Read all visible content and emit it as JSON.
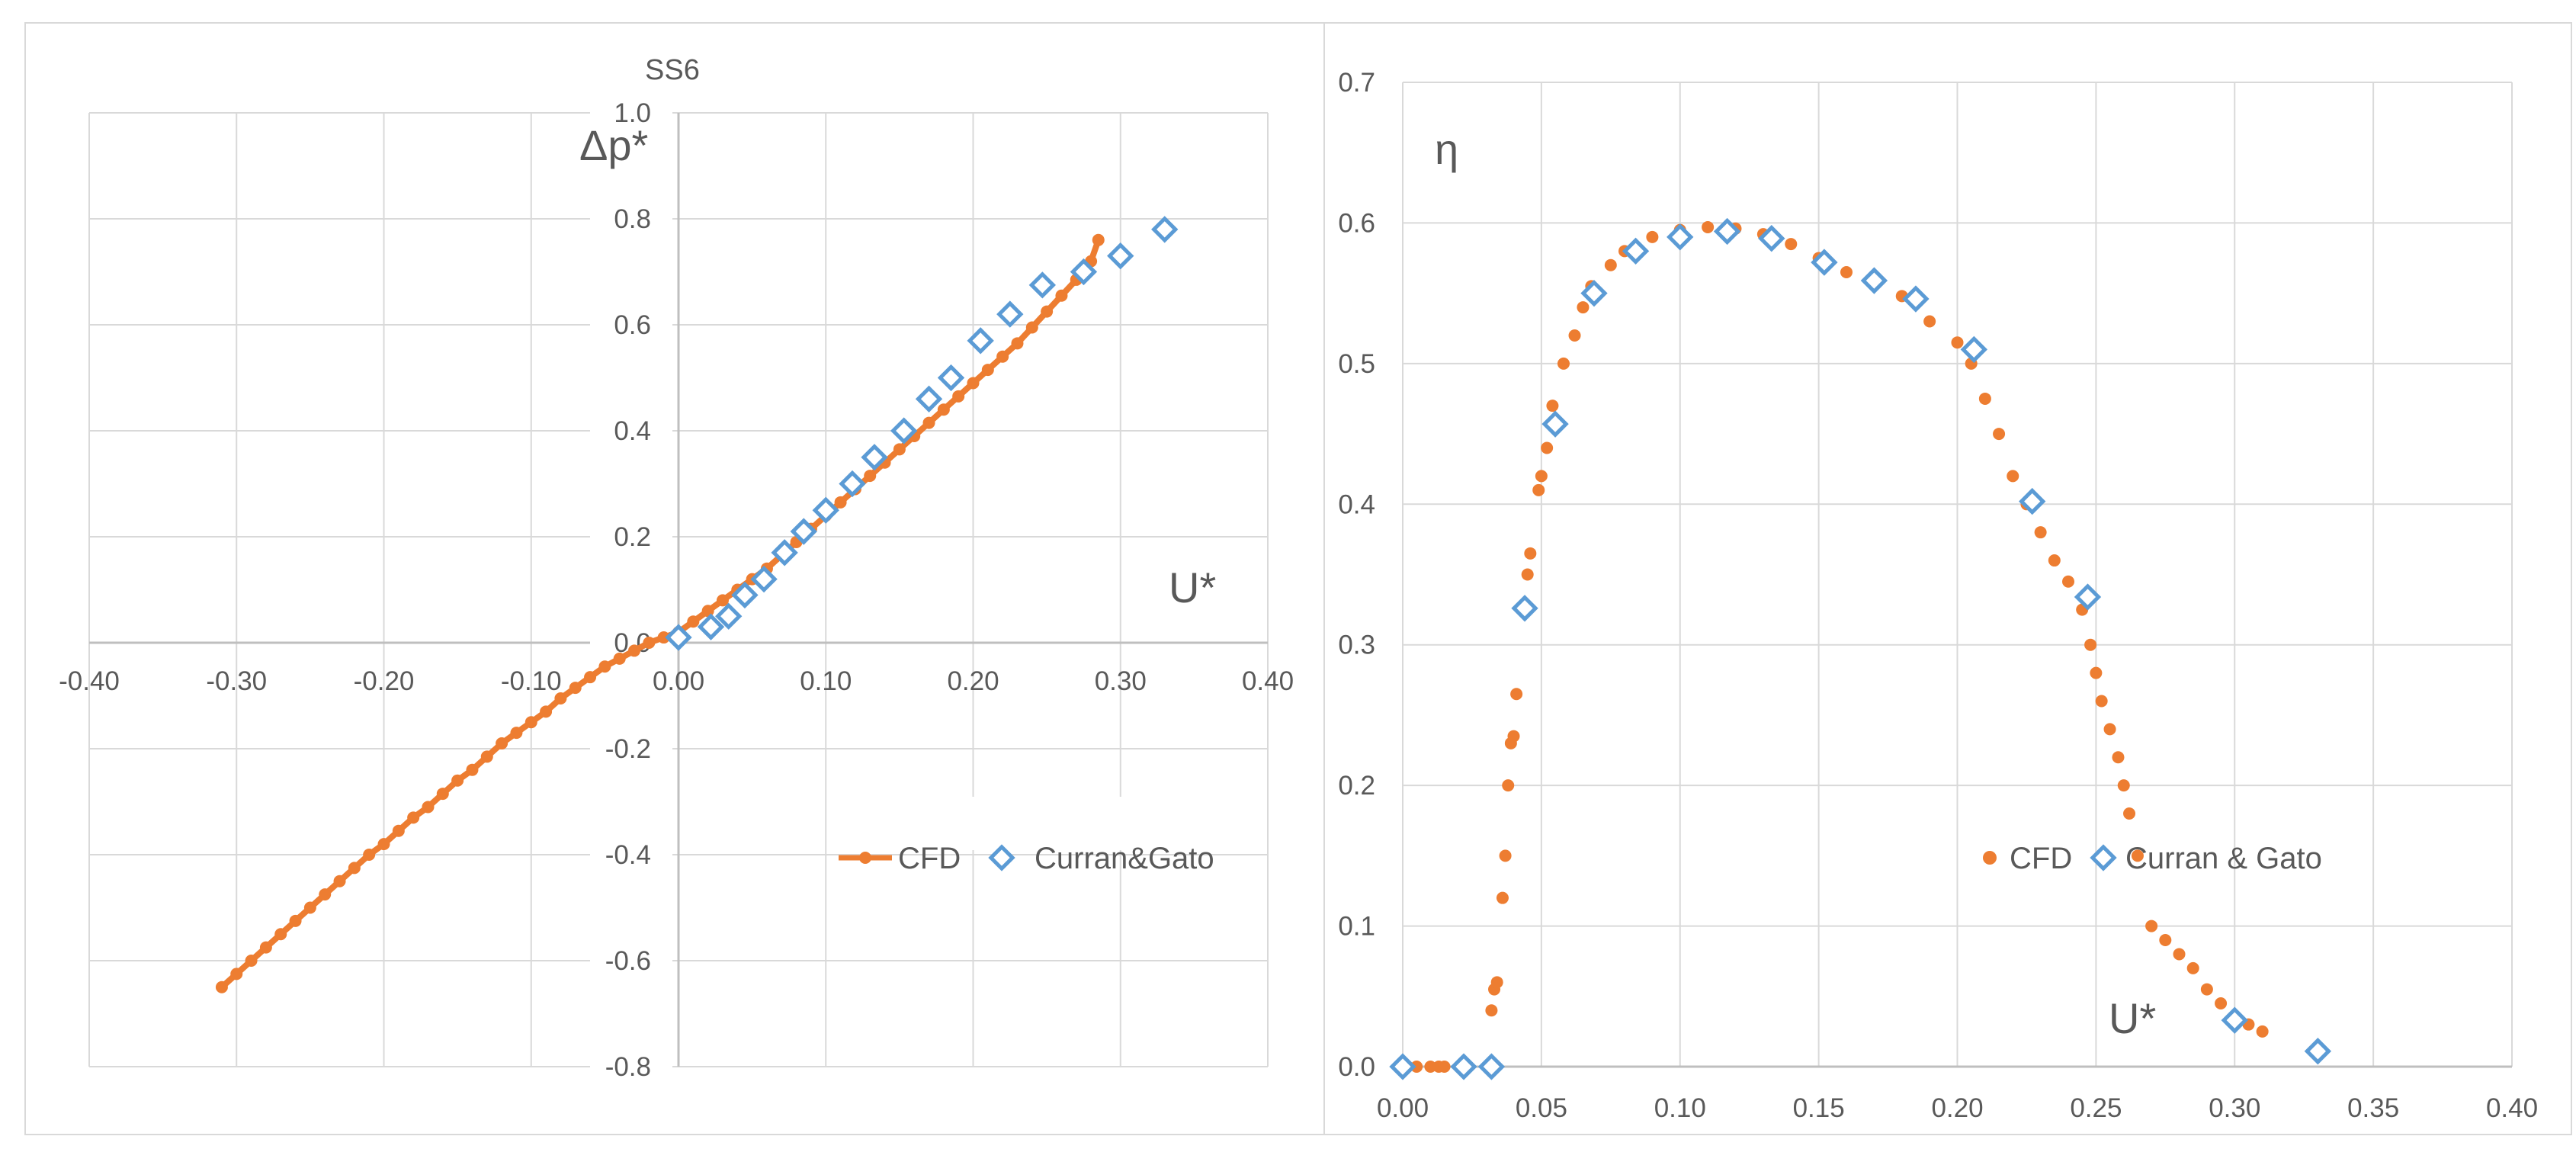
{
  "chart_data": [
    {
      "type": "scatter",
      "title": "SS6",
      "xlabel": "U*",
      "ylabel": "Δp*",
      "xlim": [
        -0.4,
        0.4
      ],
      "ylim": [
        -0.8,
        1.0
      ],
      "xticks": [
        "-0.40",
        "-0.30",
        "-0.20",
        "-0.10",
        "0.00",
        "0.10",
        "0.20",
        "0.30",
        "0.40"
      ],
      "yticks": [
        "-0.8",
        "-0.6",
        "-0.4",
        "-0.2",
        "0.0",
        "0.2",
        "0.4",
        "0.6",
        "0.8",
        "1.0"
      ],
      "legend": [
        "CFD",
        "Curran&Gato"
      ],
      "series": [
        {
          "name": "CFD",
          "style": "line-marker",
          "color": "#ED7D31",
          "x": [
            -0.31,
            -0.3,
            -0.29,
            -0.28,
            -0.27,
            -0.26,
            -0.25,
            -0.24,
            -0.23,
            -0.22,
            -0.21,
            -0.2,
            -0.19,
            -0.18,
            -0.17,
            -0.16,
            -0.15,
            -0.14,
            -0.13,
            -0.12,
            -0.11,
            -0.1,
            -0.09,
            -0.08,
            -0.07,
            -0.06,
            -0.05,
            -0.04,
            -0.03,
            -0.02,
            -0.01,
            0.0,
            0.01,
            0.02,
            0.03,
            0.04,
            0.05,
            0.06,
            0.07,
            0.08,
            0.09,
            0.1,
            0.11,
            0.12,
            0.13,
            0.14,
            0.15,
            0.16,
            0.17,
            0.18,
            0.19,
            0.2,
            0.21,
            0.22,
            0.23,
            0.24,
            0.25,
            0.26,
            0.27,
            0.28,
            0.285
          ],
          "y": [
            -0.65,
            -0.625,
            -0.6,
            -0.575,
            -0.55,
            -0.525,
            -0.5,
            -0.475,
            -0.45,
            -0.425,
            -0.4,
            -0.38,
            -0.355,
            -0.33,
            -0.31,
            -0.285,
            -0.26,
            -0.24,
            -0.215,
            -0.19,
            -0.17,
            -0.15,
            -0.13,
            -0.105,
            -0.085,
            -0.065,
            -0.045,
            -0.03,
            -0.015,
            0.0,
            0.01,
            0.02,
            0.04,
            0.06,
            0.08,
            0.1,
            0.12,
            0.14,
            0.165,
            0.19,
            0.215,
            0.24,
            0.265,
            0.29,
            0.315,
            0.34,
            0.365,
            0.39,
            0.415,
            0.44,
            0.465,
            0.49,
            0.515,
            0.54,
            0.565,
            0.595,
            0.625,
            0.655,
            0.685,
            0.72,
            0.76
          ]
        },
        {
          "name": "Curran&Gato",
          "style": "open-diamond",
          "color": "#5B9BD5",
          "x": [
            0.0,
            0.022,
            0.034,
            0.045,
            0.058,
            0.072,
            0.085,
            0.1,
            0.118,
            0.133,
            0.153,
            0.17,
            0.185,
            0.205,
            0.225,
            0.247,
            0.275,
            0.3,
            0.33
          ],
          "y": [
            0.01,
            0.03,
            0.05,
            0.09,
            0.12,
            0.17,
            0.21,
            0.25,
            0.3,
            0.35,
            0.4,
            0.46,
            0.5,
            0.57,
            0.62,
            0.675,
            0.7,
            0.73,
            0.78
          ]
        }
      ]
    },
    {
      "type": "scatter",
      "title": "",
      "xlabel": "U*",
      "ylabel": "η",
      "xlim": [
        0.0,
        0.4
      ],
      "ylim": [
        0.0,
        0.7
      ],
      "xticks": [
        "0.00",
        "0.05",
        "0.10",
        "0.15",
        "0.20",
        "0.25",
        "0.30",
        "0.35",
        "0.40"
      ],
      "yticks": [
        "0.0",
        "0.1",
        "0.2",
        "0.3",
        "0.4",
        "0.5",
        "0.6",
        "0.7"
      ],
      "legend": [
        "CFD",
        "Curran & Gato"
      ],
      "series": [
        {
          "name": "CFD",
          "style": "marker",
          "color": "#ED7D31",
          "x": [
            0.0,
            0.005,
            0.01,
            0.013,
            0.015,
            0.032,
            0.033,
            0.034,
            0.036,
            0.037,
            0.038,
            0.039,
            0.04,
            0.041,
            0.045,
            0.046,
            0.049,
            0.05,
            0.052,
            0.054,
            0.058,
            0.062,
            0.065,
            0.068,
            0.075,
            0.08,
            0.09,
            0.1,
            0.11,
            0.12,
            0.13,
            0.14,
            0.15,
            0.16,
            0.17,
            0.18,
            0.19,
            0.2,
            0.205,
            0.21,
            0.215,
            0.22,
            0.225,
            0.23,
            0.235,
            0.24,
            0.245,
            0.248,
            0.25,
            0.252,
            0.255,
            0.258,
            0.26,
            0.262,
            0.265,
            0.27,
            0.275,
            0.28,
            0.285,
            0.29,
            0.295,
            0.3,
            0.305,
            0.31
          ],
          "y": [
            0.0,
            0.0,
            0.0,
            0.0,
            0.0,
            0.04,
            0.055,
            0.06,
            0.12,
            0.15,
            0.2,
            0.23,
            0.235,
            0.265,
            0.35,
            0.365,
            0.41,
            0.42,
            0.44,
            0.47,
            0.5,
            0.52,
            0.54,
            0.555,
            0.57,
            0.58,
            0.59,
            0.595,
            0.597,
            0.596,
            0.592,
            0.585,
            0.575,
            0.565,
            0.558,
            0.548,
            0.53,
            0.515,
            0.5,
            0.475,
            0.45,
            0.42,
            0.4,
            0.38,
            0.36,
            0.345,
            0.325,
            0.3,
            0.28,
            0.26,
            0.24,
            0.22,
            0.2,
            0.18,
            0.15,
            0.1,
            0.09,
            0.08,
            0.07,
            0.055,
            0.045,
            0.035,
            0.03,
            0.025
          ]
        },
        {
          "name": "Curran & Gato",
          "style": "open-diamond",
          "color": "#5B9BD5",
          "x": [
            0.0,
            0.022,
            0.032,
            0.044,
            0.055,
            0.069,
            0.084,
            0.1,
            0.117,
            0.133,
            0.152,
            0.17,
            0.185,
            0.206,
            0.227,
            0.247,
            0.3,
            0.33
          ],
          "y": [
            0.0,
            0.0,
            0.0,
            0.326,
            0.457,
            0.55,
            0.58,
            0.59,
            0.594,
            0.589,
            0.572,
            0.559,
            0.546,
            0.51,
            0.402,
            0.334,
            0.033,
            0.011
          ]
        }
      ]
    }
  ]
}
